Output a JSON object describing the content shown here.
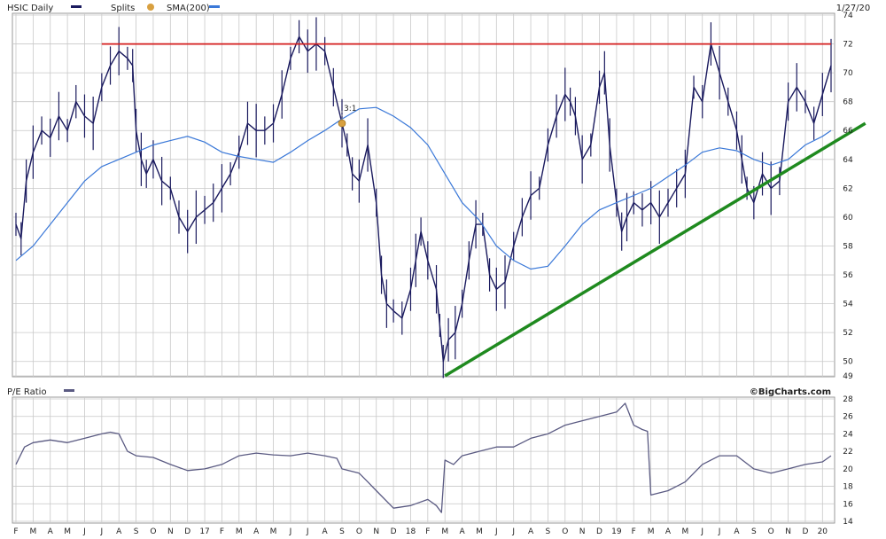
{
  "header": {
    "symbol_label": "HSIC Daily",
    "splits_label": "Splits",
    "sma_label": "SMA(200)",
    "end_date": "1/27/20"
  },
  "lower_panel": {
    "label": "P/E Ratio",
    "copyright": "©BigCharts.com"
  },
  "colors": {
    "price": "#1a1a5e",
    "sma": "#3a78d8",
    "resistance": "#d41e1e",
    "trendline": "#1f8a1f",
    "pe": "#5a5a82",
    "split_marker": "#d8a040",
    "grid": "#c8c8c8"
  },
  "chart_data": [
    {
      "type": "line",
      "title": "HSIC Daily",
      "x_month_labels": [
        "F",
        "M",
        "A",
        "M",
        "J",
        "J",
        "A",
        "S",
        "O",
        "N",
        "D",
        "17",
        "F",
        "M",
        "A",
        "M",
        "J",
        "J",
        "A",
        "S",
        "O",
        "N",
        "D",
        "18",
        "F",
        "M",
        "A",
        "M",
        "J",
        "J",
        "A",
        "S",
        "O",
        "N",
        "D",
        "19",
        "F",
        "M",
        "A",
        "M",
        "J",
        "J",
        "A",
        "S",
        "O",
        "N",
        "D",
        "20"
      ],
      "ylim": [
        49,
        74
      ],
      "y_ticks": [
        49,
        50,
        52,
        54,
        56,
        58,
        60,
        62,
        64,
        66,
        68,
        70,
        72,
        74
      ],
      "grid": true,
      "split_marker": {
        "date_index": 19,
        "label": "3:1",
        "value": 66.5
      },
      "series": [
        {
          "name": "HSIC Daily",
          "style": "price-bars",
          "points": [
            [
              0,
              59.5
            ],
            [
              0.3,
              58.5
            ],
            [
              0.6,
              62.5
            ],
            [
              1,
              64.5
            ],
            [
              1.5,
              66
            ],
            [
              2,
              65.5
            ],
            [
              2.5,
              67
            ],
            [
              3,
              66
            ],
            [
              3.5,
              68
            ],
            [
              4,
              67
            ],
            [
              4.5,
              66.5
            ],
            [
              5,
              69
            ],
            [
              5.5,
              70.5
            ],
            [
              6,
              71.5
            ],
            [
              6.5,
              71
            ],
            [
              6.8,
              70.5
            ],
            [
              7,
              66
            ],
            [
              7.3,
              64
            ],
            [
              7.6,
              63
            ],
            [
              8,
              64
            ],
            [
              8.5,
              62.5
            ],
            [
              9,
              62
            ],
            [
              9.5,
              60
            ],
            [
              10,
              59
            ],
            [
              10.5,
              60
            ],
            [
              11,
              60.5
            ],
            [
              11.5,
              61
            ],
            [
              12,
              62
            ],
            [
              12.5,
              63
            ],
            [
              13,
              64.5
            ],
            [
              13.5,
              66.5
            ],
            [
              14,
              66
            ],
            [
              14.5,
              66
            ],
            [
              15,
              66.5
            ],
            [
              15.5,
              68.5
            ],
            [
              16,
              71
            ],
            [
              16.5,
              72.5
            ],
            [
              17,
              71.5
            ],
            [
              17.5,
              72
            ],
            [
              18,
              71.5
            ],
            [
              18.5,
              69
            ],
            [
              19,
              66.5
            ],
            [
              19.3,
              65
            ],
            [
              19.6,
              63
            ],
            [
              20,
              62.5
            ],
            [
              20.5,
              65
            ],
            [
              21,
              61
            ],
            [
              21.3,
              56
            ],
            [
              21.6,
              54
            ],
            [
              22,
              53.5
            ],
            [
              22.5,
              53
            ],
            [
              23,
              55
            ],
            [
              23.3,
              57
            ],
            [
              23.6,
              59
            ],
            [
              24,
              57
            ],
            [
              24.5,
              55
            ],
            [
              24.7,
              52.5
            ],
            [
              24.9,
              50
            ],
            [
              25.2,
              51.5
            ],
            [
              25.6,
              52
            ],
            [
              26,
              54
            ],
            [
              26.4,
              57
            ],
            [
              26.8,
              59.5
            ],
            [
              27.2,
              59.5
            ],
            [
              27.6,
              56
            ],
            [
              28,
              55
            ],
            [
              28.5,
              55.5
            ],
            [
              29,
              58
            ],
            [
              29.5,
              60
            ],
            [
              30,
              61.5
            ],
            [
              30.5,
              62
            ],
            [
              31,
              65
            ],
            [
              31.5,
              67
            ],
            [
              32,
              68.5
            ],
            [
              32.3,
              68
            ],
            [
              32.6,
              67
            ],
            [
              33,
              64
            ],
            [
              33.5,
              65
            ],
            [
              34,
              69
            ],
            [
              34.3,
              70
            ],
            [
              34.6,
              65
            ],
            [
              35,
              61
            ],
            [
              35.3,
              59
            ],
            [
              35.6,
              60
            ],
            [
              36,
              61
            ],
            [
              36.5,
              60.5
            ],
            [
              37,
              61
            ],
            [
              37.5,
              60
            ],
            [
              38,
              61
            ],
            [
              38.5,
              62
            ],
            [
              39,
              63
            ],
            [
              39.5,
              69
            ],
            [
              40,
              68
            ],
            [
              40.5,
              72
            ],
            [
              41,
              70
            ],
            [
              41.5,
              68
            ],
            [
              42,
              66
            ],
            [
              42.3,
              64
            ],
            [
              42.6,
              62
            ],
            [
              43,
              61
            ],
            [
              43.5,
              63
            ],
            [
              44,
              62
            ],
            [
              44.5,
              62.5
            ],
            [
              45,
              68
            ],
            [
              45.5,
              69
            ],
            [
              46,
              68
            ],
            [
              46.5,
              66.5
            ],
            [
              47,
              68.5
            ],
            [
              47.5,
              70.5
            ]
          ]
        },
        {
          "name": "SMA(200)",
          "points": [
            [
              0,
              57
            ],
            [
              1,
              58
            ],
            [
              2,
              59.5
            ],
            [
              3,
              61
            ],
            [
              4,
              62.5
            ],
            [
              5,
              63.5
            ],
            [
              6,
              64
            ],
            [
              7,
              64.5
            ],
            [
              8,
              65
            ],
            [
              9,
              65.3
            ],
            [
              10,
              65.6
            ],
            [
              11,
              65.2
            ],
            [
              12,
              64.5
            ],
            [
              13,
              64.2
            ],
            [
              14,
              64
            ],
            [
              15,
              63.8
            ],
            [
              16,
              64.5
            ],
            [
              17,
              65.3
            ],
            [
              18,
              66
            ],
            [
              19,
              66.8
            ],
            [
              20,
              67.5
            ],
            [
              21,
              67.6
            ],
            [
              22,
              67
            ],
            [
              23,
              66.2
            ],
            [
              24,
              65
            ],
            [
              25,
              63
            ],
            [
              26,
              61
            ],
            [
              27,
              59.8
            ],
            [
              28,
              58
            ],
            [
              29,
              57
            ],
            [
              30,
              56.4
            ],
            [
              31,
              56.6
            ],
            [
              32,
              58
            ],
            [
              33,
              59.5
            ],
            [
              34,
              60.5
            ],
            [
              35,
              61
            ],
            [
              36,
              61.5
            ],
            [
              37,
              62
            ],
            [
              38,
              62.8
            ],
            [
              39,
              63.6
            ],
            [
              40,
              64.5
            ],
            [
              41,
              64.8
            ],
            [
              42,
              64.6
            ],
            [
              43,
              64
            ],
            [
              44,
              63.6
            ],
            [
              45,
              64
            ],
            [
              46,
              65
            ],
            [
              47,
              65.6
            ],
            [
              47.5,
              66
            ]
          ]
        },
        {
          "name": "resistance",
          "points": [
            [
              5,
              72
            ],
            [
              47.5,
              72
            ]
          ]
        },
        {
          "name": "trendline",
          "points": [
            [
              25,
              49
            ],
            [
              49.5,
              66.5
            ]
          ]
        }
      ]
    },
    {
      "type": "line",
      "title": "P/E Ratio",
      "ylim": [
        14,
        28
      ],
      "y_ticks": [
        14,
        16,
        18,
        20,
        22,
        24,
        26,
        28
      ],
      "grid": true,
      "series": [
        {
          "name": "P/E Ratio",
          "points": [
            [
              0,
              20.5
            ],
            [
              0.5,
              22.5
            ],
            [
              1,
              23
            ],
            [
              2,
              23.3
            ],
            [
              3,
              23
            ],
            [
              4,
              23.5
            ],
            [
              5,
              24
            ],
            [
              5.5,
              24.2
            ],
            [
              6,
              24
            ],
            [
              6.5,
              22
            ],
            [
              7,
              21.5
            ],
            [
              8,
              21.3
            ],
            [
              9,
              20.5
            ],
            [
              10,
              19.8
            ],
            [
              11,
              20
            ],
            [
              12,
              20.5
            ],
            [
              13,
              21.5
            ],
            [
              14,
              21.8
            ],
            [
              15,
              21.6
            ],
            [
              16,
              21.5
            ],
            [
              17,
              21.8
            ],
            [
              18,
              21.5
            ],
            [
              18.7,
              21.2
            ],
            [
              19,
              20
            ],
            [
              20,
              19.5
            ],
            [
              20.5,
              18.5
            ],
            [
              21,
              17.5
            ],
            [
              22,
              15.5
            ],
            [
              23,
              15.8
            ],
            [
              24,
              16.5
            ],
            [
              24.5,
              15.8
            ],
            [
              24.8,
              15
            ],
            [
              25,
              21
            ],
            [
              25.5,
              20.5
            ],
            [
              26,
              21.5
            ],
            [
              27,
              22
            ],
            [
              28,
              22.5
            ],
            [
              29,
              22.5
            ],
            [
              30,
              23.5
            ],
            [
              31,
              24
            ],
            [
              32,
              25
            ],
            [
              33,
              25.5
            ],
            [
              34,
              26
            ],
            [
              35,
              26.5
            ],
            [
              35.5,
              27.5
            ],
            [
              36,
              25
            ],
            [
              36.5,
              24.5
            ],
            [
              36.8,
              24.3
            ],
            [
              37,
              17
            ],
            [
              38,
              17.5
            ],
            [
              39,
              18.5
            ],
            [
              40,
              20.5
            ],
            [
              41,
              21.5
            ],
            [
              42,
              21.5
            ],
            [
              43,
              20
            ],
            [
              44,
              19.5
            ],
            [
              45,
              20
            ],
            [
              46,
              20.5
            ],
            [
              47,
              20.8
            ],
            [
              47.5,
              21.5
            ]
          ]
        }
      ]
    }
  ]
}
